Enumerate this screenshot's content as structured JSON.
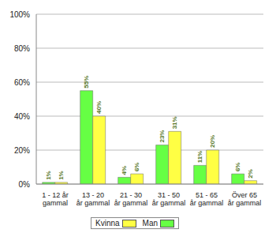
{
  "chart_data": {
    "type": "bar",
    "categories": [
      "1 - 12 år gammal",
      "13 - 20 år gammal",
      "21 - 30 år gammal",
      "31 - 50 år gammal",
      "51 - 65 år gammal",
      "Över 65 år gammal"
    ],
    "series": [
      {
        "name": "Man",
        "color": "#66ff44",
        "values": [
          1,
          55,
          4,
          23,
          11,
          6
        ],
        "value_labels": [
          "1%",
          "55%",
          "4%",
          "23%",
          "11%",
          "6%"
        ]
      },
      {
        "name": "Kvinna",
        "color": "#ffff44",
        "values": [
          1,
          40,
          6,
          31,
          20,
          2
        ],
        "value_labels": [
          "1%",
          "40%",
          "6%",
          "31%",
          "20%",
          "2%"
        ]
      }
    ],
    "ylim": [
      0,
      100
    ],
    "yticks": [
      {
        "value": 0,
        "label": "0%"
      },
      {
        "value": 20,
        "label": "20%"
      },
      {
        "value": 40,
        "label": "40%"
      },
      {
        "value": 60,
        "label": "60%"
      },
      {
        "value": 80,
        "label": "80%"
      },
      {
        "value": 100,
        "label": "100%"
      }
    ],
    "grid": true,
    "data_labels": true,
    "legend": "bottom"
  }
}
